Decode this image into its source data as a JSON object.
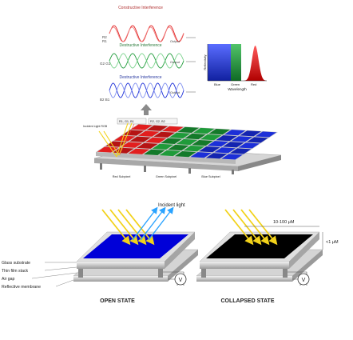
{
  "colors": {
    "red": "#e21e1e",
    "green": "#1f9b3a",
    "blue": "#1c2fd8",
    "black": "#000000",
    "light_ray": "#f2d21a",
    "incident_ray": "#2aa3ff",
    "metal": "#c8c8c8"
  },
  "interference": {
    "constructive": {
      "title": "Constructive Interference",
      "labels": [
        "R2",
        "R1"
      ],
      "output": "Output"
    },
    "destructive_1": {
      "title": "Destructive Interference",
      "labels": [
        "G2",
        "G1"
      ],
      "output": "Output"
    },
    "destructive_2": {
      "title": "Destructive Interference",
      "labels": [
        "B2",
        "B1"
      ],
      "output": "Output"
    }
  },
  "spectrum": {
    "ylabel": "Reflectivity",
    "xlabel": "Wavelength",
    "bands": [
      "Blue",
      "Green",
      "Red"
    ]
  },
  "pixel_array": {
    "incident_label": "Incident Light RGB",
    "top_labels": [
      "R1, G1, B1",
      "R2, G2, B2"
    ],
    "subpixels": [
      "Red Subpixel",
      "Green Subpixel",
      "Blue Subpixel"
    ]
  },
  "states": {
    "incident_light": "Incident light",
    "layers": [
      "Glass substrate",
      "Thin film stack",
      "Air gap",
      "Reflective membrane"
    ],
    "dimension_width": "10-100 μM",
    "dimension_gap": "<1 μM",
    "voltage": "V",
    "open_label": "OPEN STATE",
    "collapsed_label": "COLLAPSED STATE"
  }
}
